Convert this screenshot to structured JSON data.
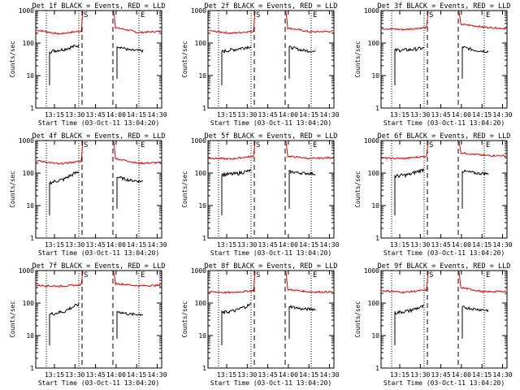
{
  "colors": {
    "events": "#000000",
    "lld": "#dd0000",
    "axes": "#000000"
  },
  "chart_data": [
    {
      "type": "line",
      "title": "Det 1f BLACK = Events, RED = LLD",
      "ylabel": "Counts/sec",
      "xlabel": "Start Time (03-Oct-11 13:04:20)",
      "xticks": [
        "13:15",
        "13:30",
        "13:45",
        "14:00",
        "14:15",
        "14:30"
      ],
      "yticks": [
        "1",
        "10",
        "100",
        "1000"
      ],
      "ylim": [
        1,
        1000
      ],
      "yscale": "log",
      "markers": [
        "S",
        "E"
      ],
      "grid": false,
      "series": [
        {
          "name": "Events",
          "pre": [
            55,
            65,
            85
          ],
          "post": [
            80,
            60,
            58
          ]
        },
        {
          "name": "LLD",
          "pre": [
            250,
            190,
            235
          ],
          "post": [
            300,
            210,
            230
          ]
        }
      ]
    },
    {
      "type": "line",
      "title": "Det 2f BLACK = Events, RED = LLD",
      "ylabel": "Counts/sec",
      "xlabel": "Start Time (03-Oct-11 13:04:20)",
      "xticks": [
        "13:15",
        "13:30",
        "13:45",
        "14:00",
        "14:15",
        "14:30"
      ],
      "yticks": [
        "1",
        "10",
        "100",
        "1000"
      ],
      "ylim": [
        1,
        1000
      ],
      "yscale": "log",
      "markers": [
        "S",
        "E"
      ],
      "grid": false,
      "series": [
        {
          "name": "Events",
          "pre": [
            55,
            65,
            80
          ],
          "post": [
            75,
            60,
            55
          ]
        },
        {
          "name": "LLD",
          "pre": [
            240,
            200,
            230
          ],
          "post": [
            290,
            220,
            230
          ]
        }
      ]
    },
    {
      "type": "line",
      "title": "Det 3f BLACK = Events, RED = LLD",
      "ylabel": "Counts/sec",
      "xlabel": "Start Time (03-Oct-11 13:04:20)",
      "xticks": [
        "13:15",
        "13:30",
        "13:45",
        "14:00",
        "14:15",
        "14:30"
      ],
      "yticks": [
        "1",
        "10",
        "100",
        "1000"
      ],
      "ylim": [
        1,
        1000
      ],
      "yscale": "log",
      "markers": [
        "S",
        "E"
      ],
      "grid": false,
      "series": [
        {
          "name": "Events",
          "pre": [
            60,
            62,
            70
          ],
          "post": [
            75,
            60,
            55
          ]
        },
        {
          "name": "LLD",
          "pre": [
            280,
            260,
            300
          ],
          "post": [
            380,
            310,
            280
          ]
        }
      ]
    },
    {
      "type": "line",
      "title": "Det 4f BLACK = Events, RED = LLD",
      "ylabel": "Counts/sec",
      "xlabel": "Start Time (03-Oct-11 13:04:20)",
      "xticks": [
        "13:15",
        "13:30",
        "13:45",
        "14:00",
        "14:15",
        "14:30"
      ],
      "yticks": [
        "1",
        "10",
        "100",
        "1000"
      ],
      "ylim": [
        1,
        1000
      ],
      "yscale": "log",
      "markers": [
        "S",
        "E"
      ],
      "grid": false,
      "series": [
        {
          "name": "Events",
          "pre": [
            50,
            65,
            110
          ],
          "post": [
            75,
            60,
            55
          ]
        },
        {
          "name": "LLD",
          "pre": [
            240,
            190,
            230
          ],
          "post": [
            280,
            200,
            210
          ]
        }
      ]
    },
    {
      "type": "line",
      "title": "Det 5f BLACK = Events, RED = LLD",
      "ylabel": "Counts/sec",
      "xlabel": "Start Time (03-Oct-11 13:04:20)",
      "xticks": [
        "13:15",
        "13:30",
        "13:45",
        "14:00",
        "14:15",
        "14:30"
      ],
      "yticks": [
        "1",
        "10",
        "100",
        "1000"
      ],
      "ylim": [
        1,
        1000
      ],
      "yscale": "log",
      "markers": [
        "S",
        "E"
      ],
      "grid": false,
      "series": [
        {
          "name": "Events",
          "pre": [
            90,
            95,
            120
          ],
          "post": [
            110,
            100,
            95
          ]
        },
        {
          "name": "LLD",
          "pre": [
            290,
            270,
            330
          ],
          "post": [
            330,
            280,
            300
          ]
        }
      ]
    },
    {
      "type": "line",
      "title": "Det 6f BLACK = Events, RED = LLD",
      "ylabel": "Counts/sec",
      "xlabel": "Start Time (03-Oct-11 13:04:20)",
      "xticks": [
        "13:15",
        "13:30",
        "13:45",
        "14:00",
        "14:15",
        "14:30"
      ],
      "yticks": [
        "1",
        "10",
        "100",
        "1000"
      ],
      "ylim": [
        1,
        1000
      ],
      "yscale": "log",
      "markers": [
        "S",
        "E"
      ],
      "grid": false,
      "series": [
        {
          "name": "Events",
          "pre": [
            80,
            90,
            130
          ],
          "post": [
            115,
            100,
            95
          ]
        },
        {
          "name": "LLD",
          "pre": [
            290,
            280,
            330
          ],
          "post": [
            420,
            350,
            340
          ]
        }
      ]
    },
    {
      "type": "line",
      "title": "Det 7f BLACK = Events, RED = LLD",
      "ylabel": "Counts/sec",
      "xlabel": "Start Time (03-Oct-11 13:04:20)",
      "xticks": [
        "13:15",
        "13:30",
        "13:45",
        "14:00",
        "14:15",
        "14:30"
      ],
      "yticks": [
        "1",
        "10",
        "100",
        "1000"
      ],
      "ylim": [
        1,
        1000
      ],
      "yscale": "log",
      "markers": [
        "S",
        "E"
      ],
      "grid": false,
      "series": [
        {
          "name": "Events",
          "pre": [
            45,
            55,
            90
          ],
          "post": [
            55,
            45,
            45
          ]
        },
        {
          "name": "LLD",
          "pre": [
            350,
            330,
            360
          ],
          "post": [
            400,
            340,
            350
          ]
        }
      ]
    },
    {
      "type": "line",
      "title": "Det 8f BLACK = Events, RED = LLD",
      "ylabel": "Counts/sec",
      "xlabel": "Start Time (03-Oct-11 13:04:20)",
      "xticks": [
        "13:15",
        "13:30",
        "13:45",
        "14:00",
        "14:15",
        "14:30"
      ],
      "yticks": [
        "1",
        "10",
        "100",
        "1000"
      ],
      "ylim": [
        1,
        1000
      ],
      "yscale": "log",
      "markers": [
        "S",
        "E"
      ],
      "grid": false,
      "series": [
        {
          "name": "Events",
          "pre": [
            50,
            60,
            90
          ],
          "post": [
            80,
            65,
            65
          ]
        },
        {
          "name": "LLD",
          "pre": [
            220,
            210,
            240
          ],
          "post": [
            260,
            220,
            220
          ]
        }
      ]
    },
    {
      "type": "line",
      "title": "Det 9f BLACK = Events, RED = LLD",
      "ylabel": "Counts/sec",
      "xlabel": "Start Time (03-Oct-11 13:04:20)",
      "xticks": [
        "13:15",
        "13:30",
        "13:45",
        "14:00",
        "14:15",
        "14:30"
      ],
      "yticks": [
        "1",
        "10",
        "100",
        "1000"
      ],
      "ylim": [
        1,
        1000
      ],
      "yscale": "log",
      "markers": [
        "S",
        "E"
      ],
      "grid": false,
      "series": [
        {
          "name": "Events",
          "pre": [
            50,
            58,
            80
          ],
          "post": [
            75,
            65,
            60
          ]
        },
        {
          "name": "LLD",
          "pre": [
            240,
            215,
            250
          ],
          "post": [
            300,
            220,
            230
          ]
        }
      ]
    }
  ]
}
